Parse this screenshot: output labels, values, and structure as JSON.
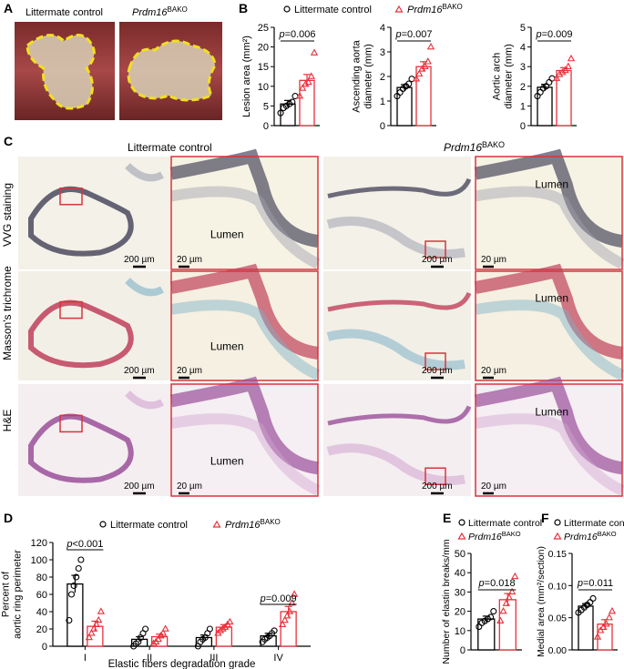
{
  "panels": {
    "A": "A",
    "B": "B",
    "C": "C",
    "D": "D",
    "E": "E",
    "F": "F"
  },
  "group_control": "Littermate control",
  "group_mutant_italic": "Prdm16",
  "group_mutant_sup": "BAKO",
  "rows": [
    "VVG staining",
    "Masson's trichrome",
    "H&E"
  ],
  "scale_large": "200 µm",
  "scale_small": "20 µm",
  "lumen": "Lumen",
  "colors": {
    "control": "#000000",
    "mutant": "#e8303a",
    "frame": "#d9343c",
    "lesion_outline": "#f0e020"
  },
  "chart_data": [
    {
      "id": "B1",
      "type": "bar",
      "ylabel": "Lesion area (mm²)",
      "ylim": [
        0,
        25
      ],
      "yticks": [
        0,
        5,
        10,
        15,
        20,
        25
      ],
      "pvalue": "p=0.006",
      "series": [
        {
          "name": "Littermate control",
          "mean": 5.5,
          "sem": 0.9,
          "points": [
            3.2,
            4.5,
            5.0,
            5.5,
            6.0,
            7.5
          ]
        },
        {
          "name": "Prdm16 BAKO",
          "mean": 11.5,
          "sem": 1.5,
          "points": [
            7.5,
            9.5,
            10.5,
            11.0,
            12.5,
            18.5
          ]
        }
      ]
    },
    {
      "id": "B2",
      "type": "bar",
      "ylabel": "Ascending aorta diameter (mm)",
      "ylim": [
        0,
        4
      ],
      "yticks": [
        0,
        1,
        2,
        3,
        4
      ],
      "pvalue": "p=0.007",
      "series": [
        {
          "name": "Littermate control",
          "mean": 1.55,
          "sem": 0.12,
          "points": [
            1.2,
            1.35,
            1.5,
            1.6,
            1.7,
            1.9
          ]
        },
        {
          "name": "Prdm16 BAKO",
          "mean": 2.4,
          "sem": 0.2,
          "points": [
            1.9,
            2.1,
            2.3,
            2.4,
            2.6,
            3.2
          ]
        }
      ]
    },
    {
      "id": "B3",
      "type": "bar",
      "ylabel": "Aortic arch diameter (mm)",
      "ylim": [
        0,
        5
      ],
      "yticks": [
        0,
        1,
        2,
        3,
        4,
        5
      ],
      "pvalue": "p=0.009",
      "series": [
        {
          "name": "Littermate control",
          "mean": 1.95,
          "sem": 0.15,
          "points": [
            1.5,
            1.7,
            1.9,
            2.0,
            2.2,
            2.4
          ]
        },
        {
          "name": "Prdm16 BAKO",
          "mean": 2.8,
          "sem": 0.15,
          "points": [
            2.4,
            2.6,
            2.7,
            2.8,
            3.0,
            3.4
          ]
        }
      ]
    },
    {
      "id": "D",
      "type": "bar",
      "ylabel": "Percent of aortic ring perimeter",
      "xlabel": "Elastic fibers degradation grade",
      "ylim": [
        0,
        120
      ],
      "yticks": [
        0,
        20,
        40,
        60,
        80,
        100,
        120
      ],
      "categories": [
        "I",
        "II",
        "III",
        "IV"
      ],
      "pvalues": [
        {
          "category": "I",
          "text": "p<0.001"
        },
        {
          "category": "IV",
          "text": "p=0.009"
        }
      ],
      "series": [
        {
          "name": "Littermate control",
          "means": [
            72,
            8,
            10,
            12
          ],
          "sems": [
            10,
            3,
            3,
            3
          ],
          "points": [
            [
              30,
              60,
              70,
              80,
              90,
              100
            ],
            [
              0,
              3,
              5,
              10,
              15,
              20
            ],
            [
              0,
              5,
              8,
              10,
              15,
              20
            ],
            [
              5,
              8,
              10,
              12,
              15,
              18
            ]
          ]
        },
        {
          "name": "Prdm16 BAKO",
          "means": [
            23,
            11,
            22,
            40
          ],
          "sems": [
            6,
            3,
            3,
            6
          ],
          "points": [
            [
              10,
              15,
              20,
              25,
              30,
              40
            ],
            [
              3,
              5,
              8,
              12,
              15,
              20
            ],
            [
              15,
              18,
              20,
              22,
              25,
              28
            ],
            [
              25,
              30,
              35,
              40,
              50,
              60
            ]
          ]
        }
      ]
    },
    {
      "id": "E",
      "type": "bar",
      "ylabel": "Number of elastin breaks/mm",
      "ylim": [
        0,
        50
      ],
      "yticks": [
        0,
        10,
        20,
        30,
        40,
        50
      ],
      "pvalue": "p=0.018",
      "series": [
        {
          "name": "Littermate control",
          "mean": 16,
          "sem": 1.5,
          "points": [
            12,
            14,
            15,
            16,
            17,
            20
          ]
        },
        {
          "name": "Prdm16 BAKO",
          "mean": 26,
          "sem": 3.2,
          "points": [
            15,
            20,
            24,
            27,
            30,
            38
          ]
        }
      ]
    },
    {
      "id": "F",
      "type": "bar",
      "ylabel": "Medial area (mm²/section)",
      "ylim": [
        0,
        0.15
      ],
      "yticks": [
        "0.00",
        "0.05",
        "0.10",
        "0.15"
      ],
      "pvalue": "p=0.011",
      "series": [
        {
          "name": "Littermate control",
          "mean": 0.068,
          "sem": 0.004,
          "points": [
            0.058,
            0.062,
            0.066,
            0.07,
            0.074,
            0.08
          ]
        },
        {
          "name": "Prdm16 BAKO",
          "mean": 0.04,
          "sem": 0.007,
          "points": [
            0.02,
            0.03,
            0.035,
            0.04,
            0.05,
            0.06
          ]
        }
      ]
    }
  ]
}
